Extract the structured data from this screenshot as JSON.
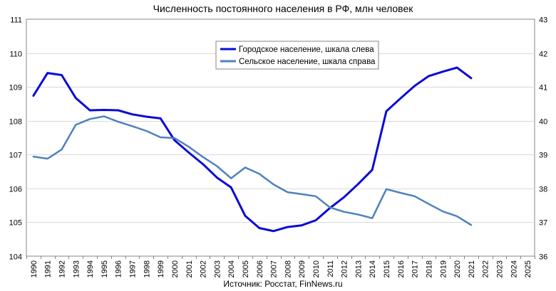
{
  "chart_data": {
    "type": "line",
    "title": "Численность постоянного населения в РФ, млн человек",
    "source": "Источник: Росстат, FinNews.ru",
    "x_categories": [
      "1990",
      "1991",
      "1992",
      "1993",
      "1994",
      "1995",
      "1996",
      "1997",
      "1998",
      "1999",
      "2000",
      "2001",
      "2002",
      "2003",
      "2004",
      "2005",
      "2006",
      "2007",
      "2008",
      "2009",
      "2010",
      "2011",
      "2012",
      "2013",
      "2014",
      "2015",
      "2016",
      "2017",
      "2018",
      "2019",
      "2020",
      "2021",
      "2022",
      "2023",
      "2024",
      "2025"
    ],
    "y_left": {
      "range": [
        104,
        111
      ],
      "ticks": [
        "104",
        "105",
        "106",
        "107",
        "108",
        "109",
        "110",
        "111"
      ]
    },
    "y_right": {
      "range": [
        36,
        43
      ],
      "ticks": [
        "36",
        "37",
        "38",
        "39",
        "40",
        "41",
        "42",
        "43"
      ]
    },
    "grid": true,
    "legend": {
      "position": "top-center"
    },
    "series": [
      {
        "name": "Городское население, шкала слева",
        "axis": "left",
        "color": "#0a0ad6",
        "x": [
          "1990",
          "1991",
          "1992",
          "1993",
          "1994",
          "1995",
          "1996",
          "1997",
          "1998",
          "1999",
          "2000",
          "2001",
          "2002",
          "2003",
          "2004",
          "2005",
          "2006",
          "2007",
          "2008",
          "2009",
          "2010",
          "2011",
          "2012",
          "2013",
          "2014",
          "2015",
          "2016",
          "2017",
          "2018",
          "2019",
          "2020",
          "2021"
        ],
        "values": [
          108.74,
          109.41,
          109.35,
          108.67,
          108.31,
          108.32,
          108.31,
          108.19,
          108.12,
          108.07,
          107.42,
          107.06,
          106.72,
          106.32,
          106.03,
          105.19,
          104.83,
          104.74,
          104.86,
          104.91,
          105.06,
          105.42,
          105.74,
          106.13,
          106.55,
          108.28,
          108.66,
          109.03,
          109.32,
          109.45,
          109.57,
          109.26
        ]
      },
      {
        "name": "Сельское население, шкала справа",
        "axis": "right",
        "color": "#4f81bd",
        "x": [
          "1990",
          "1991",
          "1992",
          "1993",
          "1994",
          "1995",
          "1996",
          "1997",
          "1998",
          "1999",
          "2000",
          "2001",
          "2002",
          "2003",
          "2004",
          "2005",
          "2006",
          "2007",
          "2008",
          "2009",
          "2010",
          "2011",
          "2012",
          "2013",
          "2014",
          "2015",
          "2016",
          "2017",
          "2018",
          "2019",
          "2020",
          "2021"
        ],
        "values": [
          38.94,
          38.88,
          39.15,
          39.88,
          40.05,
          40.13,
          39.97,
          39.84,
          39.7,
          39.51,
          39.49,
          39.23,
          38.93,
          38.66,
          38.3,
          38.62,
          38.43,
          38.12,
          37.89,
          37.83,
          37.77,
          37.44,
          37.31,
          37.23,
          37.12,
          37.98,
          37.87,
          37.77,
          37.54,
          37.32,
          37.18,
          36.92
        ]
      }
    ]
  }
}
